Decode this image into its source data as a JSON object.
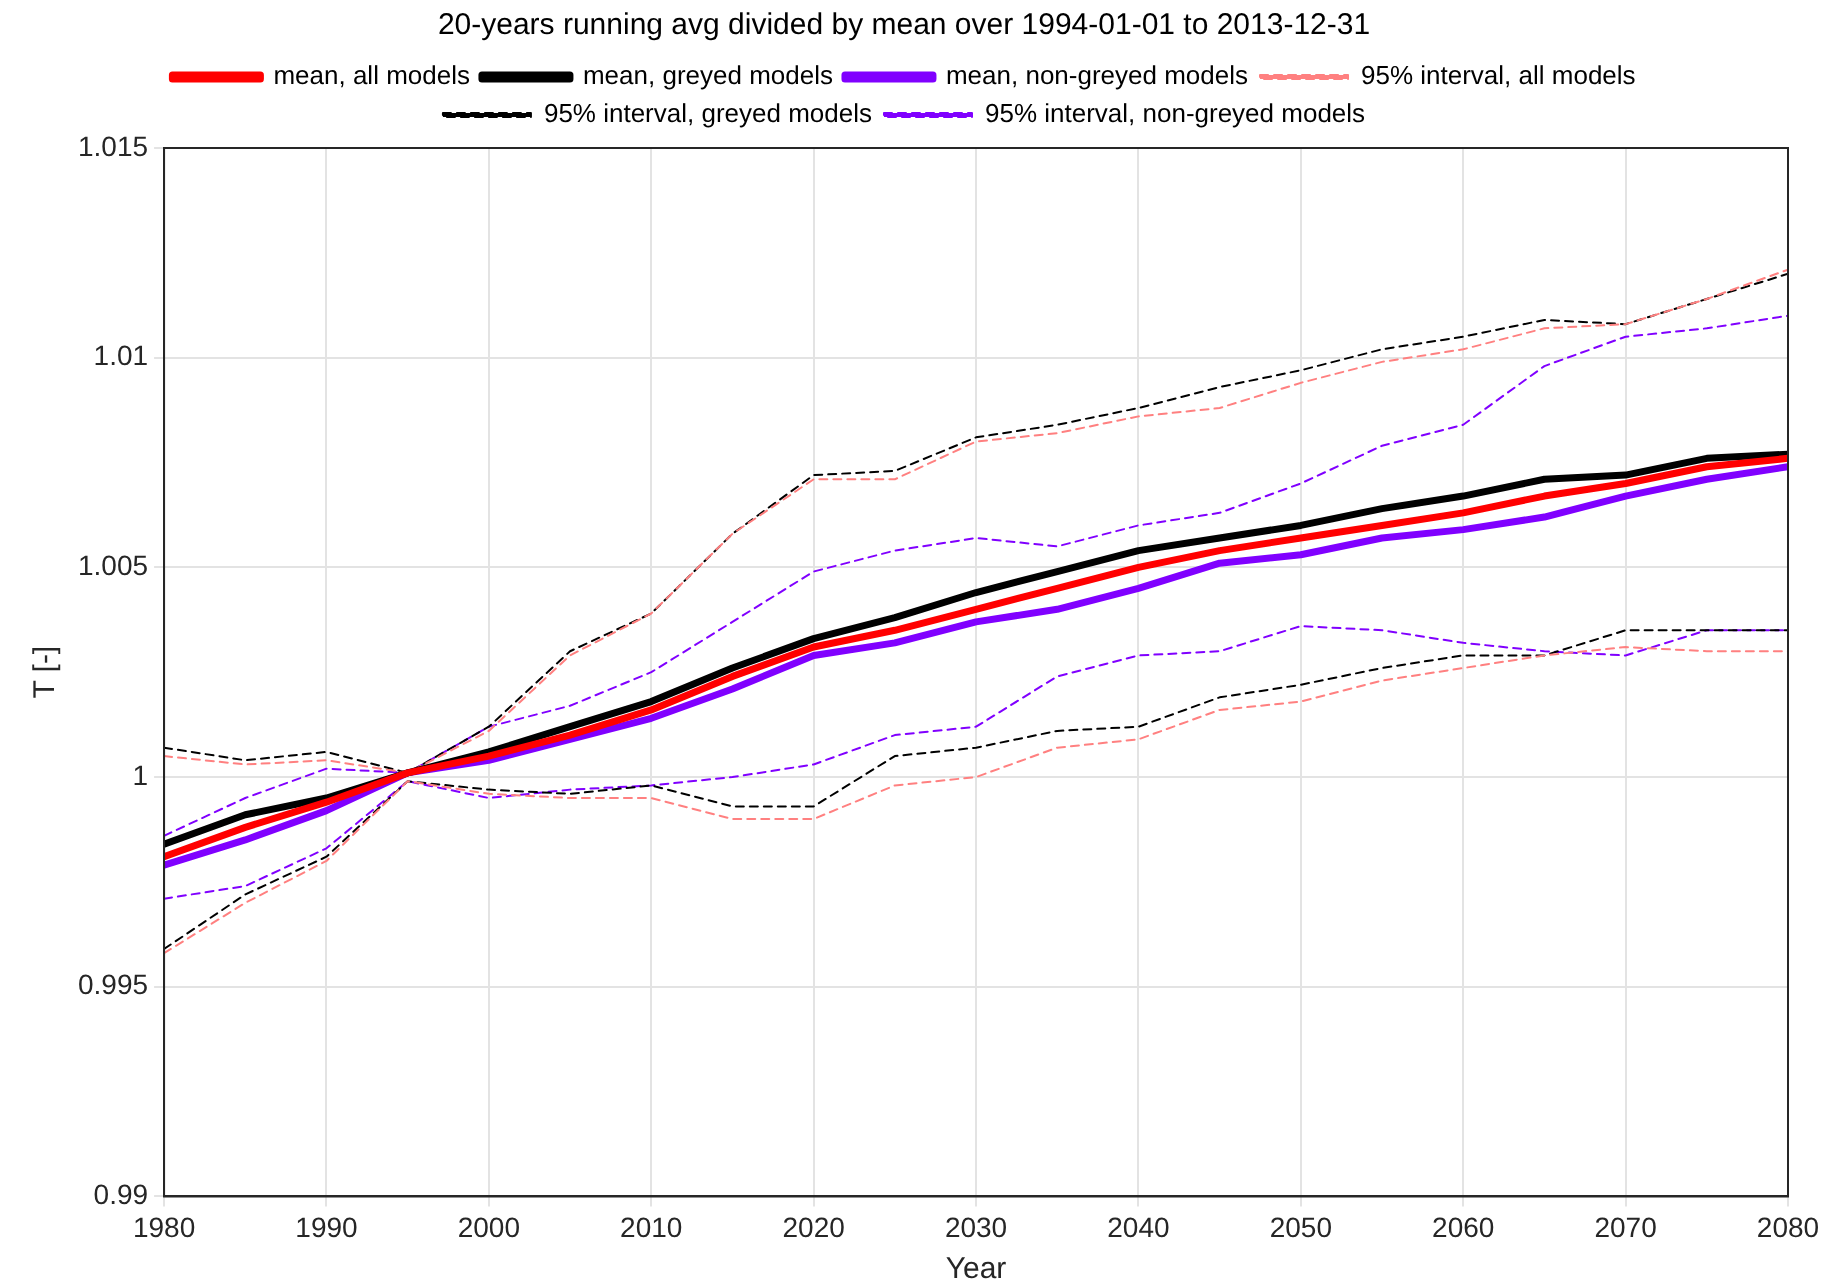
{
  "chart_data": {
    "type": "line",
    "title": "20-years running avg divided by mean over 1994-01-01 to 2013-12-31",
    "xlabel": "Year",
    "ylabel": "T [-]",
    "x": [
      1980,
      1985,
      1990,
      1995,
      2000,
      2005,
      2010,
      2015,
      2020,
      2025,
      2030,
      2035,
      2040,
      2045,
      2050,
      2055,
      2060,
      2065,
      2070,
      2075,
      2080
    ],
    "series": [
      {
        "name": "mean, all models",
        "color": "#ff0000",
        "line_style": "solid",
        "values": [
          0.9981,
          0.9988,
          0.9994,
          1.0001,
          1.0005,
          1.001,
          1.0016,
          1.0024,
          1.0031,
          1.0035,
          1.004,
          1.0045,
          1.005,
          1.0054,
          1.0057,
          1.006,
          1.0063,
          1.0067,
          1.007,
          1.0074,
          1.0076
        ]
      },
      {
        "name": "mean, greyed models",
        "color": "#000000",
        "line_style": "solid",
        "values": [
          0.9984,
          0.9991,
          0.9995,
          1.0001,
          1.0006,
          1.0012,
          1.0018,
          1.0026,
          1.0033,
          1.0038,
          1.0044,
          1.0049,
          1.0054,
          1.0057,
          1.006,
          1.0064,
          1.0067,
          1.0071,
          1.0072,
          1.0076,
          1.0077
        ]
      },
      {
        "name": "mean, non-greyed models",
        "color": "#8000ff",
        "line_style": "solid",
        "values": [
          0.9979,
          0.9985,
          0.9992,
          1.0001,
          1.0004,
          1.0009,
          1.0014,
          1.0021,
          1.0029,
          1.0032,
          1.0037,
          1.004,
          1.0045,
          1.0051,
          1.0053,
          1.0057,
          1.0059,
          1.0062,
          1.0067,
          1.0071,
          1.0074
        ]
      },
      {
        "name": "95% interval, all models",
        "color": "#ff8080",
        "line_style": "dashed",
        "values": [
          1.0005,
          1.0003,
          1.0004,
          1.0001,
          1.0011,
          1.0029,
          1.0039,
          1.0058,
          1.0071,
          1.0071,
          1.008,
          1.0082,
          1.0086,
          1.0088,
          1.0094,
          1.0099,
          1.0102,
          1.0107,
          1.0108,
          1.0114,
          1.0121
        ]
      },
      {
        "name": null,
        "color": "#ff8080",
        "line_style": "dashed",
        "values": [
          0.9958,
          0.997,
          0.998,
          0.9999,
          0.9996,
          0.9995,
          0.9995,
          0.999,
          0.999,
          0.9998,
          1.0,
          1.0007,
          1.0009,
          1.0016,
          1.0018,
          1.0023,
          1.0026,
          1.0029,
          1.0031,
          1.003,
          1.003
        ]
      },
      {
        "name": "95% interval, greyed models",
        "color": "#000000",
        "line_style": "dashed",
        "values": [
          1.0007,
          1.0004,
          1.0006,
          1.0001,
          1.0012,
          1.003,
          1.0039,
          1.0058,
          1.0072,
          1.0073,
          1.0081,
          1.0084,
          1.0088,
          1.0093,
          1.0097,
          1.0102,
          1.0105,
          1.0109,
          1.0108,
          1.0114,
          1.012
        ]
      },
      {
        "name": null,
        "color": "#000000",
        "line_style": "dashed",
        "values": [
          0.9959,
          0.9972,
          0.9981,
          0.9999,
          0.9997,
          0.9996,
          0.9998,
          0.9993,
          0.9993,
          1.0005,
          1.0007,
          1.0011,
          1.0012,
          1.0019,
          1.0022,
          1.0026,
          1.0029,
          1.0029,
          1.0035,
          1.0035,
          1.0035
        ]
      },
      {
        "name": "95% interval, non-greyed models",
        "color": "#8000ff",
        "line_style": "dashed",
        "values": [
          0.9986,
          0.9995,
          1.0002,
          1.0001,
          1.0012,
          1.0017,
          1.0025,
          1.0037,
          1.0049,
          1.0054,
          1.0057,
          1.0055,
          1.006,
          1.0063,
          1.007,
          1.0079,
          1.0084,
          1.0098,
          1.0105,
          1.0107,
          1.011
        ]
      },
      {
        "name": null,
        "color": "#8000ff",
        "line_style": "dashed",
        "values": [
          0.9971,
          0.9974,
          0.9983,
          0.9999,
          0.9995,
          0.9997,
          0.9998,
          1.0,
          1.0003,
          1.001,
          1.0012,
          1.0024,
          1.0029,
          1.003,
          1.0036,
          1.0035,
          1.0032,
          1.003,
          1.0029,
          1.0035,
          1.0035
        ]
      }
    ],
    "xlim": [
      1980,
      2080
    ],
    "xticks": [
      1980,
      1990,
      2000,
      2010,
      2020,
      2030,
      2040,
      2050,
      2060,
      2070,
      2080
    ],
    "ylim": [
      0.99,
      1.015
    ],
    "yticks": [
      0.99,
      0.995,
      1,
      1.005,
      1.01,
      1.015
    ],
    "grid": true,
    "legend": "top",
    "marker": "none"
  }
}
